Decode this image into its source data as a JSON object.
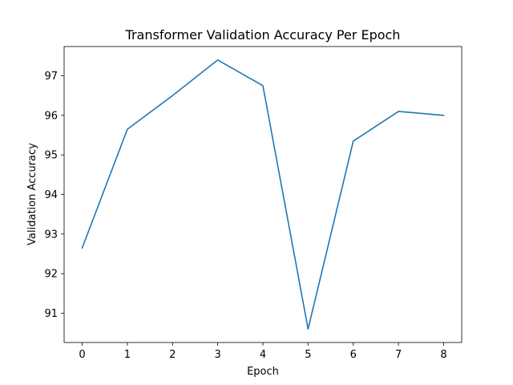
{
  "chart_data": {
    "type": "line",
    "title": "Transformer Validation Accuracy Per Epoch",
    "xlabel": "Epoch",
    "ylabel": "Validation Accuracy",
    "x": [
      0,
      1,
      2,
      3,
      4,
      5,
      6,
      7,
      8
    ],
    "series": [
      {
        "name": "Validation Accuracy",
        "color": "#1f77b4",
        "values": [
          92.65,
          95.65,
          96.5,
          97.4,
          96.75,
          90.6,
          95.35,
          96.1,
          96.0
        ]
      }
    ],
    "xlim": [
      -0.4,
      8.4
    ],
    "ylim": [
      90.26,
      97.74
    ],
    "xticks": [
      0,
      1,
      2,
      3,
      4,
      5,
      6,
      7,
      8
    ],
    "yticks": [
      91,
      92,
      93,
      94,
      95,
      96,
      97
    ],
    "grid": false,
    "legend": false
  }
}
